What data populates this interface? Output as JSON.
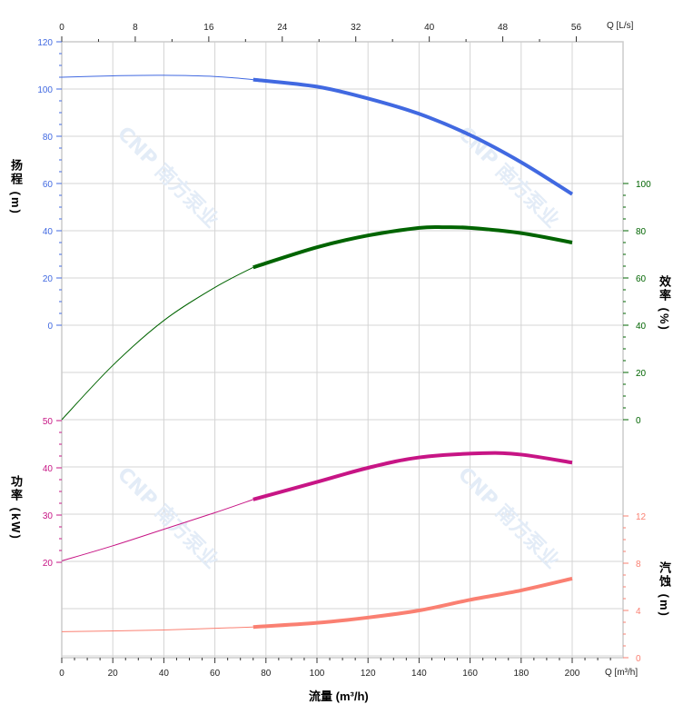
{
  "chart_data": {
    "type": "line",
    "xlabel": "流量 (m³/h)",
    "x_unit_bottom": "Q [m³/h]",
    "x_unit_top": "Q [L/s]",
    "xlim": [
      0,
      220
    ],
    "x_ticks": [
      0,
      20,
      40,
      60,
      80,
      100,
      120,
      140,
      160,
      180,
      200
    ],
    "x_top_ticks": [
      0,
      8,
      16,
      24,
      32,
      40,
      48,
      56
    ],
    "grid": true,
    "watermark": "CNP 南方泵业",
    "series": [
      {
        "key": "head",
        "axis_label": "扬程 (m)",
        "color": "#4169e1",
        "axis_side": "left",
        "ylim": [
          0,
          120
        ],
        "ticks": [
          0,
          20,
          40,
          60,
          80,
          100,
          120
        ],
        "x": [
          0,
          20,
          40,
          60,
          75,
          100,
          120,
          140,
          160,
          180,
          200
        ],
        "y": [
          105,
          105.6,
          105.8,
          105.3,
          104,
          101,
          96,
          89.5,
          80.5,
          69,
          55.5
        ]
      },
      {
        "key": "efficiency",
        "axis_label": "效率 (%)",
        "color": "#006400",
        "axis_side": "right",
        "ylim": [
          0,
          100
        ],
        "ticks": [
          0,
          20,
          40,
          60,
          80,
          100
        ],
        "x": [
          0,
          20,
          40,
          60,
          75,
          100,
          120,
          140,
          150,
          160,
          180,
          200
        ],
        "y": [
          0,
          23,
          42,
          56,
          64.5,
          73,
          78,
          81.2,
          81.5,
          81.2,
          79,
          75
        ]
      },
      {
        "key": "power",
        "axis_label": "功率 (kW)",
        "color": "#c71585",
        "axis_side": "left",
        "ylim": [
          20,
          50
        ],
        "ticks": [
          20,
          30,
          40,
          50
        ],
        "x": [
          0,
          20,
          40,
          60,
          75,
          100,
          120,
          140,
          165,
          180,
          200
        ],
        "y": [
          20.3,
          23.5,
          27,
          30.5,
          33.3,
          37,
          40,
          42.2,
          43.1,
          42.8,
          41.1
        ]
      },
      {
        "key": "npsh",
        "axis_label": "汽蚀 (m)",
        "color": "#fa8072",
        "axis_side": "right",
        "ylim": [
          0,
          12
        ],
        "ticks": [
          0,
          4,
          8,
          12
        ],
        "x": [
          0,
          40,
          75,
          100,
          120,
          140,
          160,
          180,
          200
        ],
        "y": [
          2.2,
          2.35,
          2.6,
          2.95,
          3.4,
          4.0,
          4.9,
          5.7,
          6.7
        ]
      }
    ],
    "operating_range_start": 75
  }
}
